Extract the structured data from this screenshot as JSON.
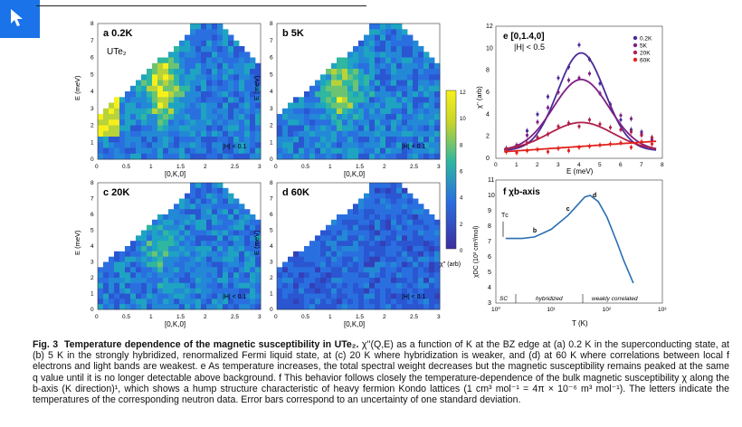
{
  "heatmaps": [
    {
      "id": "a",
      "label": "a 0.2K",
      "sublabel": "UTe₂",
      "note": "|H| < 0.1"
    },
    {
      "id": "b",
      "label": "b 5K",
      "sublabel": "",
      "note": "|H| < 0.1"
    },
    {
      "id": "c",
      "label": "c 20K",
      "sublabel": "",
      "note": "|H| < 0.1"
    },
    {
      "id": "d",
      "label": "d 60K",
      "sublabel": "",
      "note": "|H| < 0.1"
    }
  ],
  "heatmap_axes": {
    "xlabel": "[0,K,0]",
    "ylabel": "E (meV)",
    "xticks": [
      "0",
      "0.5",
      "1",
      "1.5",
      "2",
      "2.5",
      "3"
    ],
    "yticks": [
      "0",
      "1",
      "2",
      "3",
      "4",
      "5",
      "6",
      "7",
      "8"
    ]
  },
  "colorbar": {
    "ticks": [
      "12",
      "10",
      "8",
      "6",
      "4",
      "2",
      "0"
    ],
    "label": "χ'' (arb)",
    "colors": [
      "#f6f01a",
      "#2fb7a0",
      "#2a6fe0",
      "#3b2fa0"
    ]
  },
  "chart_data": [
    {
      "type": "scatter",
      "panel": "e",
      "title": "e [0,1.4,0]",
      "subtitle": "|H| < 0.5",
      "xlabel": "E (meV)",
      "ylabel": "χ'' (arb)",
      "xlim": [
        0,
        8
      ],
      "ylim": [
        0,
        12
      ],
      "xticks": [
        0,
        1,
        2,
        3,
        4,
        5,
        6,
        7,
        8
      ],
      "yticks": [
        0,
        2,
        4,
        6,
        8,
        10,
        12
      ],
      "series": [
        {
          "name": "0.2K",
          "color": "#4b2a96",
          "x": [
            0.5,
            1,
            1.5,
            2,
            2.5,
            3,
            3.5,
            4,
            4.5,
            5,
            5.5,
            6,
            6.5,
            7,
            7.5
          ],
          "y": [
            0.8,
            1.2,
            2.5,
            4.0,
            5.6,
            7.3,
            8.3,
            10.3,
            9.0,
            6.8,
            4.9,
            3.5,
            2.6,
            2.4,
            1.6
          ]
        },
        {
          "name": "5K",
          "color": "#7d1f86",
          "x": [
            0.5,
            1,
            1.5,
            2,
            2.5,
            3,
            3.5,
            4,
            4.5,
            5,
            5.5,
            6,
            6.5,
            7,
            7.5
          ],
          "y": [
            0.9,
            1.1,
            2.1,
            3.3,
            4.6,
            6.0,
            7.1,
            7.3,
            7.7,
            5.9,
            4.6,
            3.9,
            3.6,
            2.2,
            1.7
          ]
        },
        {
          "name": "20K",
          "color": "#b0204a",
          "x": [
            0.5,
            1,
            1.5,
            2,
            2.5,
            3,
            3.5,
            4,
            4.5,
            5,
            5.5,
            6,
            6.5,
            7,
            7.5
          ],
          "y": [
            0.8,
            1.1,
            1.4,
            1.9,
            2.2,
            2.9,
            3.2,
            2.9,
            3.5,
            3.1,
            2.8,
            2.6,
            2.4,
            2.1,
            1.9
          ]
        },
        {
          "name": "60K",
          "color": "#e0201a",
          "x": [
            0.5,
            1,
            1.5,
            2,
            2.5,
            3,
            3.5,
            4,
            4.5,
            5,
            5.5,
            6,
            6.5,
            7,
            7.5
          ],
          "y": [
            0.6,
            0.5,
            0.7,
            0.8,
            0.6,
            0.9,
            0.7,
            1.0,
            1.1,
            1.2,
            1.3,
            1.4,
            1.0,
            1.5,
            1.3
          ]
        }
      ]
    },
    {
      "type": "line",
      "panel": "f",
      "title": "f χb-axis",
      "xlabel": "T (K)",
      "ylabel": "χDC (10³ cm³/mol)",
      "xscale": "log",
      "xlim": [
        1,
        1000
      ],
      "ylim": [
        3,
        11
      ],
      "xticks": [
        "10⁰",
        "10¹",
        "10²",
        "10³"
      ],
      "yticks": [
        3,
        4,
        5,
        6,
        7,
        8,
        9,
        10,
        11
      ],
      "x": [
        1.5,
        2,
        3,
        5,
        10,
        20,
        30,
        40,
        50,
        70,
        100,
        150,
        200,
        300
      ],
      "y": [
        7.2,
        7.2,
        7.2,
        7.3,
        7.8,
        8.7,
        9.4,
        9.9,
        10.0,
        9.6,
        8.6,
        7.0,
        5.8,
        4.3
      ],
      "markers": [
        {
          "label": "b",
          "x": 5
        },
        {
          "label": "c",
          "x": 20
        },
        {
          "label": "d",
          "x": 60
        }
      ],
      "annotations": [
        "Tᴄ",
        "SC",
        "hybridized",
        "weakly correlated"
      ]
    }
  ],
  "caption": {
    "prefix": "Fig. 3",
    "title": "Temperature dependence of the magnetic susceptibility in UTe₂.",
    "body": " χ''(Q,E) as a function of K at the BZ edge at (a) 0.2 K in the superconducting state, at (b) 5 K in the strongly hybridized, renormalized Fermi liquid state, at (c) 20 K where hybridization is weaker, and (d) at 60 K where correlations between local f electrons and light bands are weakest. e As temperature increases, the total spectral weight decreases but the magnetic susceptibility remains peaked at the same q value until it is no longer detectable above background. f This behavior follows closely the temperature-dependence of the bulk magnetic susceptibility χ along the b-axis (K direction)¹, which shows a hump structure characteristic of heavy fermion Kondo lattices (1 cm³ mol⁻¹ = 4π × 10⁻⁶ m³ mol⁻¹). The letters indicate the temperatures of the corresponding neutron data. Error bars correspond to an uncertainty of one standard deviation."
  }
}
